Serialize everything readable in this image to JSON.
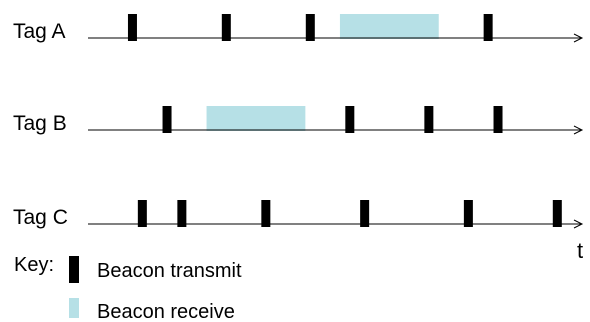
{
  "colors": {
    "transmit": "#000000",
    "receive": "#b6e0e6",
    "axis": "#000000"
  },
  "rows": [
    {
      "label": "Tag A",
      "transmit_times": [
        0.09,
        0.28,
        0.45,
        0.81
      ],
      "receive_windows": [
        [
          0.51,
          0.71
        ]
      ]
    },
    {
      "label": "Tag B",
      "transmit_times": [
        0.16,
        0.53,
        0.69,
        0.83
      ],
      "receive_windows": [
        [
          0.24,
          0.44
        ]
      ]
    },
    {
      "label": "Tag C",
      "transmit_times": [
        0.11,
        0.19,
        0.36,
        0.56,
        0.77,
        0.95
      ],
      "receive_windows": []
    }
  ],
  "axis_label": "t",
  "key": {
    "title": "Key:",
    "transmit_label": "Beacon transmit",
    "receive_label": "Beacon receive"
  }
}
